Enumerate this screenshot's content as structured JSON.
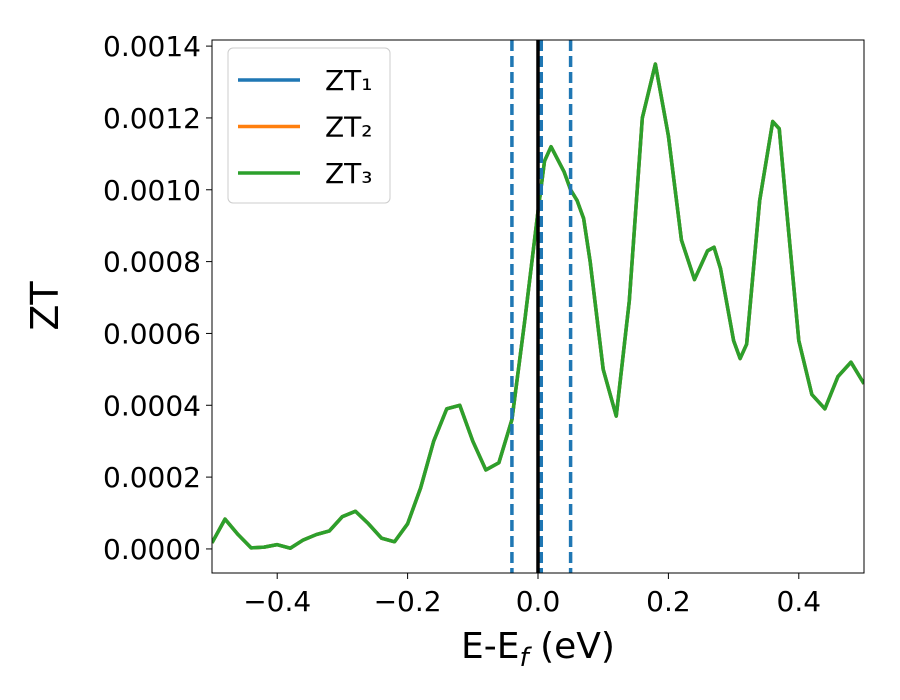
{
  "chart_data": {
    "type": "line",
    "ylabel": "ZT",
    "xlabel": [
      "E-E",
      "f",
      " (eV)"
    ],
    "x": [
      -0.5,
      -0.48,
      -0.46,
      -0.44,
      -0.42,
      -0.4,
      -0.38,
      -0.36,
      -0.34,
      -0.32,
      -0.3,
      -0.28,
      -0.26,
      -0.24,
      -0.22,
      -0.2,
      -0.18,
      -0.16,
      -0.14,
      -0.12,
      -0.1,
      -0.08,
      -0.06,
      -0.04,
      -0.02,
      0.0,
      0.01,
      0.02,
      0.04,
      0.05,
      0.06,
      0.07,
      0.08,
      0.1,
      0.12,
      0.14,
      0.16,
      0.18,
      0.2,
      0.22,
      0.24,
      0.26,
      0.27,
      0.28,
      0.3,
      0.31,
      0.32,
      0.34,
      0.36,
      0.37,
      0.38,
      0.4,
      0.42,
      0.44,
      0.46,
      0.48,
      0.5
    ],
    "series": [
      {
        "name": "ZT₁",
        "color": "#1f77b4",
        "values": [
          1.7e-05,
          8.3e-05,
          4e-05,
          3e-06,
          5e-06,
          1.2e-05,
          2e-06,
          2.5e-05,
          4e-05,
          5e-05,
          9e-05,
          0.000105,
          7e-05,
          3e-05,
          2e-05,
          7e-05,
          0.00017,
          0.0003,
          0.00039,
          0.0004,
          0.0003,
          0.00022,
          0.00024,
          0.00036,
          0.00064,
          0.00094,
          0.00108,
          0.00112,
          0.00105,
          0.001,
          0.00097,
          0.00092,
          0.0008,
          0.0005,
          0.00037,
          0.00069,
          0.0012,
          0.00135,
          0.00115,
          0.00086,
          0.00075,
          0.00083,
          0.00084,
          0.00078,
          0.00058,
          0.00053,
          0.00057,
          0.00097,
          0.00119,
          0.00117,
          0.00097,
          0.00058,
          0.00043,
          0.00039,
          0.00048,
          0.00052,
          0.00046
        ]
      },
      {
        "name": "ZT₂",
        "color": "#ff7f0e",
        "values": [
          1.7e-05,
          8.3e-05,
          4e-05,
          3e-06,
          5e-06,
          1.2e-05,
          2e-06,
          2.5e-05,
          4e-05,
          5e-05,
          9e-05,
          0.000105,
          7e-05,
          3e-05,
          2e-05,
          7e-05,
          0.00017,
          0.0003,
          0.00039,
          0.0004,
          0.0003,
          0.00022,
          0.00024,
          0.00036,
          0.00064,
          0.00094,
          0.00108,
          0.00112,
          0.00105,
          0.001,
          0.00097,
          0.00092,
          0.0008,
          0.0005,
          0.00037,
          0.00069,
          0.0012,
          0.00135,
          0.00115,
          0.00086,
          0.00075,
          0.00083,
          0.00084,
          0.00078,
          0.00058,
          0.00053,
          0.00057,
          0.00097,
          0.00119,
          0.00117,
          0.00097,
          0.00058,
          0.00043,
          0.00039,
          0.00048,
          0.00052,
          0.00046
        ]
      },
      {
        "name": "ZT₃",
        "color": "#2ca02c",
        "values": [
          1.7e-05,
          8.3e-05,
          4e-05,
          3e-06,
          5e-06,
          1.2e-05,
          2e-06,
          2.5e-05,
          4e-05,
          5e-05,
          9e-05,
          0.000105,
          7e-05,
          3e-05,
          2e-05,
          7e-05,
          0.00017,
          0.0003,
          0.00039,
          0.0004,
          0.0003,
          0.00022,
          0.00024,
          0.00036,
          0.00064,
          0.00094,
          0.00108,
          0.00112,
          0.00105,
          0.001,
          0.00097,
          0.00092,
          0.0008,
          0.0005,
          0.00037,
          0.00069,
          0.0012,
          0.00135,
          0.00115,
          0.00086,
          0.00075,
          0.00083,
          0.00084,
          0.00078,
          0.00058,
          0.00053,
          0.00057,
          0.00097,
          0.00119,
          0.00117,
          0.00097,
          0.00058,
          0.00043,
          0.00039,
          0.00048,
          0.00052,
          0.00046
        ]
      }
    ],
    "vlines": [
      {
        "x": -0.04,
        "color": "#1f77b4",
        "dashed": true
      },
      {
        "x": 0.005,
        "color": "#1f77b4",
        "dashed": true
      },
      {
        "x": 0.05,
        "color": "#1f77b4",
        "dashed": true
      },
      {
        "x": 0,
        "color": "#000000",
        "dashed": false
      }
    ],
    "xlim": [
      -0.5,
      0.5
    ],
    "ylim": [
      -6.7e-05,
      0.001417
    ],
    "xticks": [
      {
        "value": -0.4,
        "label": "−0.4"
      },
      {
        "value": -0.2,
        "label": "−0.2"
      },
      {
        "value": 0,
        "label": "0.0"
      },
      0.2,
      0.4
    ],
    "yticks": [
      {
        "value": 0,
        "label": "0.0000"
      },
      {
        "value": 0.0002,
        "label": "0.0002"
      },
      {
        "value": 0.0004,
        "label": "0.0004"
      },
      {
        "value": 0.0006,
        "label": "0.0006"
      },
      {
        "value": 0.0008,
        "label": "0.0008"
      },
      {
        "value": 0.001,
        "label": "0.0010"
      },
      {
        "value": 0.0012,
        "label": "0.0012"
      },
      {
        "value": 0.0014,
        "label": "0.0014"
      }
    ],
    "legend": "upper left",
    "grid": false
  }
}
